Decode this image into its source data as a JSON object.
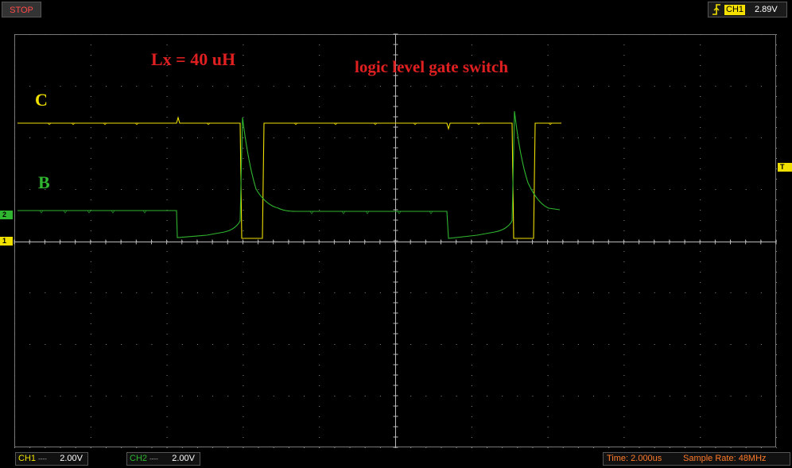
{
  "toolbar": {
    "stop_label": "STOP"
  },
  "trigger": {
    "channel": "CH1",
    "level": "2.89V",
    "icon": "rising-edge-trigger-icon",
    "marker": "T"
  },
  "annotations": {
    "lx": "Lx = 40 uH",
    "title": "logic level gate switch",
    "trace_c": "C",
    "trace_b": "B"
  },
  "markers": {
    "ch2": "2",
    "ch1": "1"
  },
  "status": {
    "ch1_name": "CH1",
    "ch1_coupling": "----",
    "ch1_scale": "2.00V",
    "ch2_name": "CH2",
    "ch2_coupling": "----",
    "ch2_scale": "2.00V",
    "time_base": "Time: 2.000us",
    "sample_rate": "Sample Rate: 48MHz"
  },
  "colors": {
    "ch1": "#f0e000",
    "ch2": "#2fb52f",
    "annotation": "#e02020",
    "status": "#ff7a2a",
    "grid": "#777777"
  }
}
